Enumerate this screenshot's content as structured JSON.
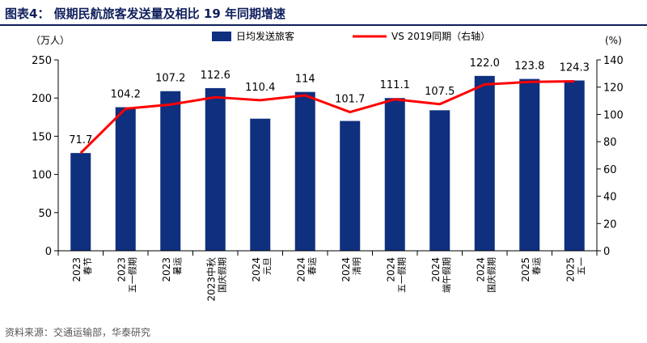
{
  "figure": {
    "title": "图表4：  假期民航旅客发送量及相比 19 年同期增速",
    "source": "资料来源：交通运输部，华泰研究"
  },
  "chart_data": {
    "type": "bar",
    "categories": [
      [
        "2023",
        "春节"
      ],
      [
        "2023",
        "五一假期"
      ],
      [
        "2023",
        "暑运"
      ],
      [
        "2023中秋",
        "国庆假期"
      ],
      [
        "2024",
        "元旦"
      ],
      [
        "2024",
        "春运"
      ],
      [
        "2024",
        "清明"
      ],
      [
        "2024",
        "五一假期"
      ],
      [
        "2024",
        "端午假期"
      ],
      [
        "2024",
        "国庆假期"
      ],
      [
        "2025",
        "春运"
      ],
      [
        "2025",
        "五一"
      ]
    ],
    "series": [
      {
        "name": "日均发送旅客",
        "type": "bar",
        "axis": "left",
        "color": "#0f2f7f",
        "values": [
          128,
          188,
          209,
          213,
          173,
          208,
          170,
          200,
          184,
          229,
          225,
          223
        ]
      },
      {
        "name": "VS 2019同期（右轴）",
        "type": "line",
        "axis": "right",
        "color": "#ff0000",
        "values": [
          71.7,
          104.2,
          107.2,
          112.6,
          110.4,
          114,
          101.7,
          111.1,
          107.5,
          122.0,
          123.8,
          124.3
        ],
        "labels": [
          "71.7",
          "104.2",
          "107.2",
          "112.6",
          "110.4",
          "114",
          "101.7",
          "111.1",
          "107.5",
          "122.0",
          "123.8",
          "124.3"
        ]
      }
    ],
    "y_left": {
      "unit": "（万人）",
      "ylim": [
        0,
        250
      ],
      "ticks": [
        "0",
        "50",
        "100",
        "150",
        "200",
        "250"
      ]
    },
    "y_right": {
      "unit": "(%)",
      "ylim": [
        0,
        140
      ],
      "ticks": [
        "0",
        "20",
        "40",
        "60",
        "80",
        "100",
        "120",
        "140"
      ]
    },
    "legend": {
      "placement": "top-center"
    },
    "grid": false
  }
}
